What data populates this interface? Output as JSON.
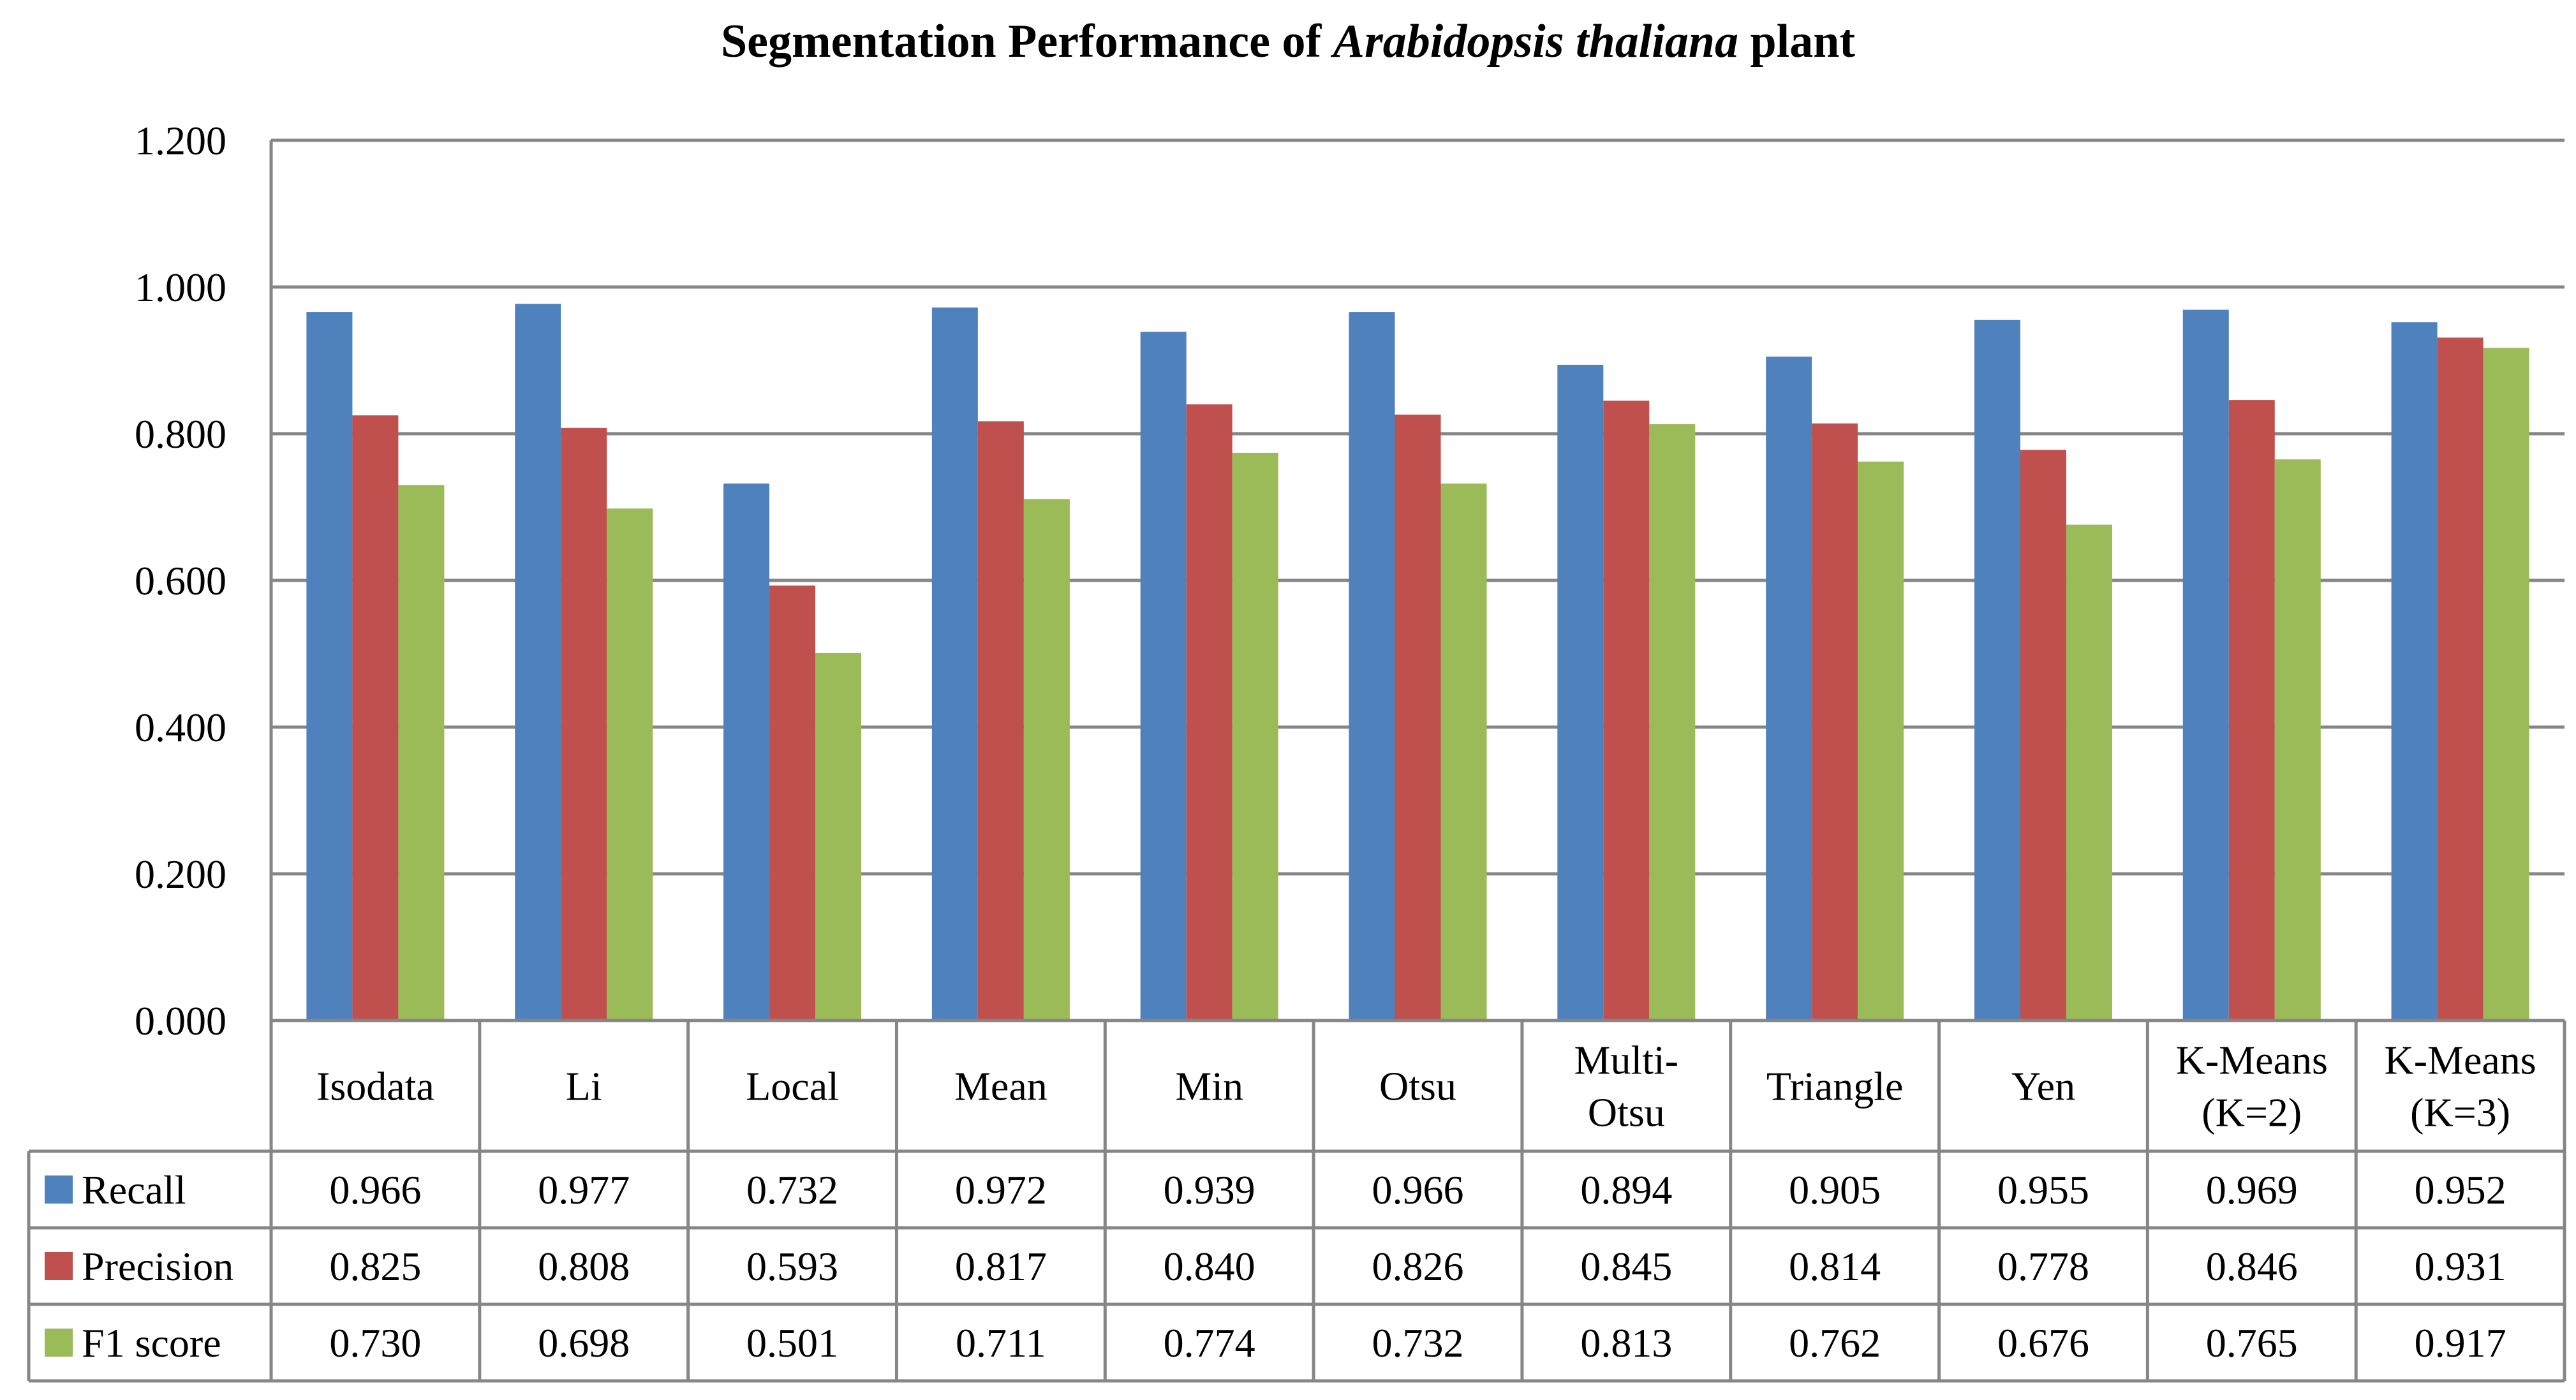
{
  "chart_data": {
    "type": "bar",
    "title_parts": [
      "Segmentation  Performance of ",
      "Arabidopsis thaliana",
      " plant"
    ],
    "categories": [
      "Isodata",
      "Li",
      "Local",
      "Mean",
      "Min",
      "Otsu",
      "Multi-Otsu",
      "Triangle",
      "Yen",
      "K-Means (K=2)",
      "K-Means (K=3)"
    ],
    "category_lines": [
      [
        "Isodata"
      ],
      [
        "Li"
      ],
      [
        "Local"
      ],
      [
        "Mean"
      ],
      [
        "Min"
      ],
      [
        "Otsu"
      ],
      [
        "Multi-",
        "Otsu"
      ],
      [
        "Triangle"
      ],
      [
        "Yen"
      ],
      [
        "K-Means",
        "(K=2)"
      ],
      [
        "K-Means",
        "(K=3)"
      ]
    ],
    "series": [
      {
        "name": "Recall",
        "color": "#4F81BD",
        "values": [
          0.966,
          0.977,
          0.732,
          0.972,
          0.939,
          0.966,
          0.894,
          0.905,
          0.955,
          0.969,
          0.952
        ],
        "labels": [
          "0.966",
          "0.977",
          "0.732",
          "0.972",
          "0.939",
          "0.966",
          "0.894",
          "0.905",
          "0.955",
          "0.969",
          "0.952"
        ]
      },
      {
        "name": "Precision",
        "color": "#C0504D",
        "values": [
          0.825,
          0.808,
          0.593,
          0.817,
          0.84,
          0.826,
          0.845,
          0.814,
          0.778,
          0.846,
          0.931
        ],
        "labels": [
          "0.825",
          "0.808",
          "0.593",
          "0.817",
          "0.840",
          "0.826",
          "0.845",
          "0.814",
          "0.778",
          "0.846",
          "0.931"
        ]
      },
      {
        "name": "F1 score",
        "color": "#9BBB59",
        "values": [
          0.73,
          0.698,
          0.501,
          0.711,
          0.774,
          0.732,
          0.813,
          0.762,
          0.676,
          0.765,
          0.917
        ],
        "labels": [
          "0.730",
          "0.698",
          "0.501",
          "0.711",
          "0.774",
          "0.732",
          "0.813",
          "0.762",
          "0.676",
          "0.765",
          "0.917"
        ]
      }
    ],
    "yticks": [
      "0.000",
      "0.200",
      "0.400",
      "0.600",
      "0.800",
      "1.000",
      "1.200"
    ],
    "ylim": [
      0,
      1.2
    ],
    "grid": true,
    "legend": "data-table"
  },
  "colors": {
    "grid": "#868686",
    "table_border": "#868686"
  }
}
